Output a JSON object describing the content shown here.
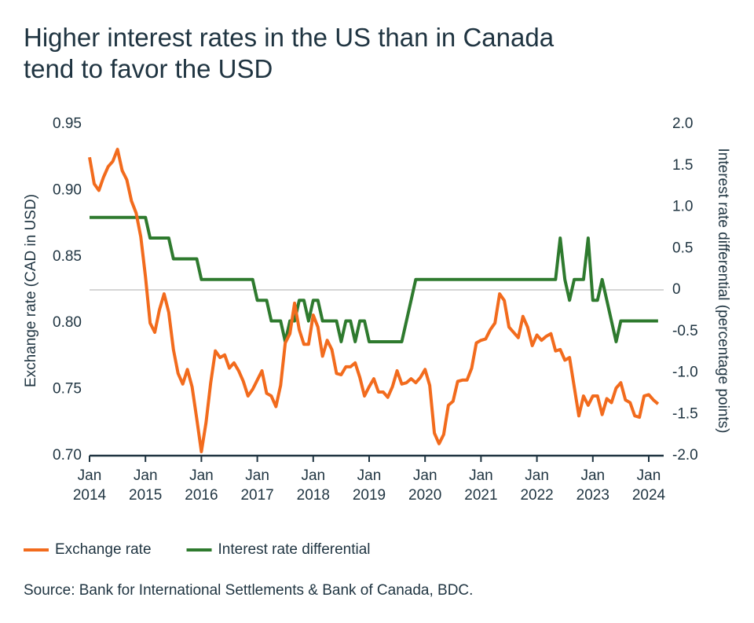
{
  "chart_data": {
    "type": "line",
    "title": "Higher interest rates in the US than in Canada tend to favor the USD",
    "y_label": "Exchange rate (CAD in USD)",
    "y2_label": "Interest rate differential (percentage points)",
    "source": "Source: Bank for International Settlements & Bank of Canada, BDC.",
    "x": [
      "2014-01",
      "2014-02",
      "2014-03",
      "2014-04",
      "2014-05",
      "2014-06",
      "2014-07",
      "2014-08",
      "2014-09",
      "2014-10",
      "2014-11",
      "2014-12",
      "2015-01",
      "2015-02",
      "2015-03",
      "2015-04",
      "2015-05",
      "2015-06",
      "2015-07",
      "2015-08",
      "2015-09",
      "2015-10",
      "2015-11",
      "2015-12",
      "2016-01",
      "2016-02",
      "2016-03",
      "2016-04",
      "2016-05",
      "2016-06",
      "2016-07",
      "2016-08",
      "2016-09",
      "2016-10",
      "2016-11",
      "2016-12",
      "2017-01",
      "2017-02",
      "2017-03",
      "2017-04",
      "2017-05",
      "2017-06",
      "2017-07",
      "2017-08",
      "2017-09",
      "2017-10",
      "2017-11",
      "2017-12",
      "2018-01",
      "2018-02",
      "2018-03",
      "2018-04",
      "2018-05",
      "2018-06",
      "2018-07",
      "2018-08",
      "2018-09",
      "2018-10",
      "2018-11",
      "2018-12",
      "2019-01",
      "2019-02",
      "2019-03",
      "2019-04",
      "2019-05",
      "2019-06",
      "2019-07",
      "2019-08",
      "2019-09",
      "2019-10",
      "2019-11",
      "2019-12",
      "2020-01",
      "2020-02",
      "2020-03",
      "2020-04",
      "2020-05",
      "2020-06",
      "2020-07",
      "2020-08",
      "2020-09",
      "2020-10",
      "2020-11",
      "2020-12",
      "2021-01",
      "2021-02",
      "2021-03",
      "2021-04",
      "2021-05",
      "2021-06",
      "2021-07",
      "2021-08",
      "2021-09",
      "2021-10",
      "2021-11",
      "2021-12",
      "2022-01",
      "2022-02",
      "2022-03",
      "2022-04",
      "2022-05",
      "2022-06",
      "2022-07",
      "2022-08",
      "2022-09",
      "2022-10",
      "2022-11",
      "2022-12",
      "2023-01",
      "2023-02",
      "2023-03",
      "2023-04",
      "2023-05",
      "2023-06",
      "2023-07",
      "2023-08",
      "2023-09",
      "2023-10",
      "2023-11",
      "2023-12",
      "2024-01",
      "2024-02",
      "2024-03"
    ],
    "series": [
      {
        "name": "Exchange rate",
        "color": "#f26b1d",
        "axis": "y",
        "values": [
          0.925,
          0.905,
          0.9,
          0.91,
          0.918,
          0.922,
          0.931,
          0.915,
          0.908,
          0.892,
          0.883,
          0.865,
          0.835,
          0.8,
          0.793,
          0.81,
          0.822,
          0.808,
          0.78,
          0.762,
          0.754,
          0.765,
          0.752,
          0.728,
          0.703,
          0.725,
          0.755,
          0.779,
          0.774,
          0.776,
          0.766,
          0.77,
          0.764,
          0.756,
          0.745,
          0.75,
          0.757,
          0.764,
          0.747,
          0.745,
          0.737,
          0.753,
          0.785,
          0.792,
          0.815,
          0.795,
          0.784,
          0.784,
          0.806,
          0.797,
          0.775,
          0.787,
          0.78,
          0.762,
          0.761,
          0.767,
          0.767,
          0.77,
          0.759,
          0.745,
          0.752,
          0.758,
          0.748,
          0.748,
          0.744,
          0.752,
          0.764,
          0.754,
          0.755,
          0.758,
          0.755,
          0.759,
          0.765,
          0.753,
          0.717,
          0.709,
          0.716,
          0.738,
          0.741,
          0.756,
          0.757,
          0.757,
          0.766,
          0.785,
          0.787,
          0.788,
          0.795,
          0.8,
          0.822,
          0.817,
          0.797,
          0.793,
          0.789,
          0.805,
          0.797,
          0.783,
          0.791,
          0.787,
          0.79,
          0.792,
          0.779,
          0.78,
          0.772,
          0.774,
          0.752,
          0.73,
          0.745,
          0.738,
          0.745,
          0.745,
          0.731,
          0.743,
          0.74,
          0.751,
          0.755,
          0.742,
          0.74,
          0.73,
          0.729,
          0.745,
          0.746,
          0.742,
          0.739
        ]
      },
      {
        "name": "Interest rate differential",
        "color": "#2e7a2e",
        "axis": "y2",
        "values": [
          0.875,
          0.875,
          0.875,
          0.875,
          0.875,
          0.875,
          0.875,
          0.875,
          0.875,
          0.875,
          0.875,
          0.875,
          0.875,
          0.625,
          0.625,
          0.625,
          0.625,
          0.625,
          0.375,
          0.375,
          0.375,
          0.375,
          0.375,
          0.375,
          0.125,
          0.125,
          0.125,
          0.125,
          0.125,
          0.125,
          0.125,
          0.125,
          0.125,
          0.125,
          0.125,
          0.125,
          -0.125,
          -0.125,
          -0.125,
          -0.375,
          -0.375,
          -0.375,
          -0.625,
          -0.375,
          -0.375,
          -0.125,
          -0.125,
          -0.375,
          -0.125,
          -0.125,
          -0.375,
          -0.375,
          -0.375,
          -0.375,
          -0.625,
          -0.375,
          -0.375,
          -0.625,
          -0.375,
          -0.375,
          -0.625,
          -0.625,
          -0.625,
          -0.625,
          -0.625,
          -0.625,
          -0.625,
          -0.625,
          -0.375,
          -0.125,
          0.125,
          0.125,
          0.125,
          0.125,
          0.125,
          0.125,
          0.125,
          0.125,
          0.125,
          0.125,
          0.125,
          0.125,
          0.125,
          0.125,
          0.125,
          0.125,
          0.125,
          0.125,
          0.125,
          0.125,
          0.125,
          0.125,
          0.125,
          0.125,
          0.125,
          0.125,
          0.125,
          0.125,
          0.125,
          0.125,
          0.125,
          0.625,
          0.125,
          -0.125,
          0.125,
          0.125,
          0.125,
          0.625,
          -0.125,
          -0.125,
          0.125,
          -0.125,
          -0.375,
          -0.625,
          -0.375,
          -0.375,
          -0.375,
          -0.375,
          -0.375,
          -0.375,
          -0.375,
          -0.375,
          -0.375
        ]
      }
    ],
    "ylim": [
      0.7,
      0.95
    ],
    "yticks": [
      {
        "value": 0.7,
        "label": "0.70"
      },
      0.75,
      {
        "value": 0.8,
        "label": "0.80"
      },
      0.85,
      {
        "value": 0.9,
        "label": "0.90"
      },
      0.95
    ],
    "y2lim": [
      -2,
      2
    ],
    "y2ticks": [
      {
        "value": -2,
        "label": "-2.0"
      },
      -1.5,
      {
        "value": -1,
        "label": "-1.0"
      },
      -0.5,
      0,
      0.5,
      {
        "value": 1,
        "label": "1.0"
      },
      1.5,
      {
        "value": 2,
        "label": "2.0"
      }
    ],
    "xticks": [
      {
        "value": "2014-01",
        "label": "Jan 2014"
      },
      {
        "value": "2015-01",
        "label": "Jan 2015"
      },
      {
        "value": "2016-01",
        "label": "Jan 2016"
      },
      {
        "value": "2017-01",
        "label": "Jan 2017"
      },
      {
        "value": "2018-01",
        "label": "Jan 2018"
      },
      {
        "value": "2019-01",
        "label": "Jan 2019"
      },
      {
        "value": "2020-01",
        "label": "Jan 2020"
      },
      {
        "value": "2021-01",
        "label": "Jan 2021"
      },
      {
        "value": "2022-01",
        "label": "Jan 2022"
      },
      {
        "value": "2023-01",
        "label": "Jan 2023"
      },
      {
        "value": "2024-01",
        "label": "Jan 2024"
      }
    ],
    "zero_line_y2": true,
    "legend": "bottom-left"
  }
}
